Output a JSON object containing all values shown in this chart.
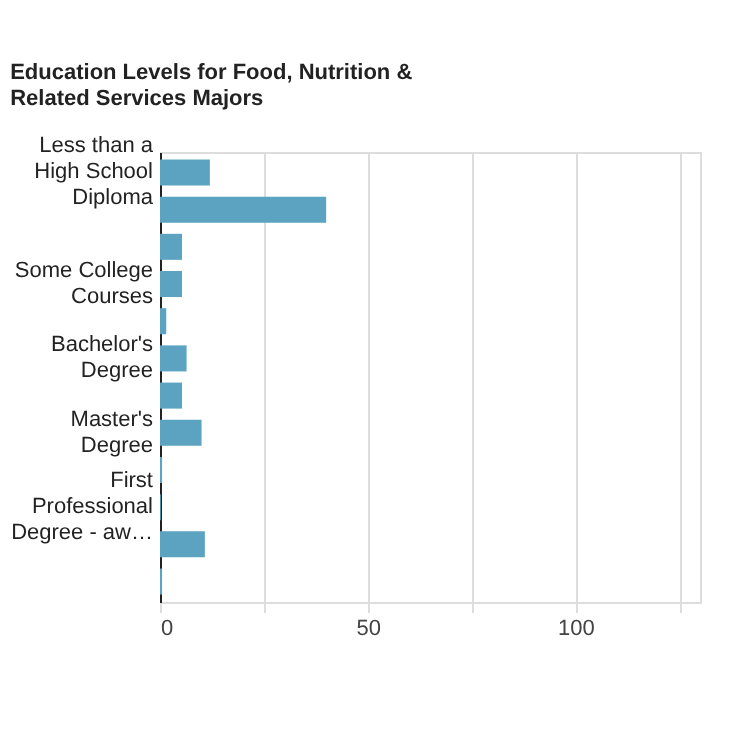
{
  "chart_data": {
    "type": "bar",
    "orientation": "horizontal",
    "title": "Education Levels for Food, Nutrition & Related Services Majors",
    "categories": [
      "Less than a High School Diploma",
      null,
      null,
      "Some College Courses",
      null,
      "Bachelor's Degree",
      null,
      "Master's Degree",
      null,
      "First Professional Degree - aw…",
      null,
      null
    ],
    "values": [
      12,
      40,
      5.3,
      5.3,
      1.5,
      6.4,
      5.3,
      10,
      0.5,
      0.2,
      10.8,
      0.5
    ],
    "color": "#5ba3c0",
    "xlim": [
      0,
      130
    ],
    "xticks": [
      0,
      {
        "value": 25,
        "label": null
      },
      50,
      {
        "value": 75,
        "label": null
      },
      100,
      {
        "value": 125,
        "label": null
      }
    ],
    "grid": "x"
  }
}
